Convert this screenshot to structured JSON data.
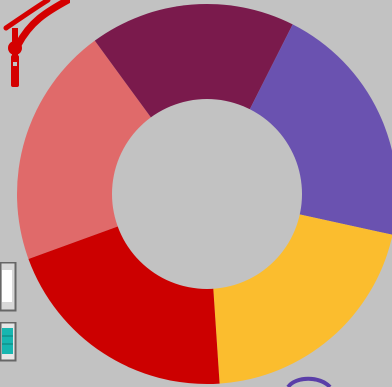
{
  "wallpaper": {
    "background_color": "#c2c2c2"
  },
  "ring_chart": {
    "inner_hole_color": "#c2c2c2",
    "segments": [
      {
        "id": "salmon",
        "color": "#e06a6a",
        "share": 0.205
      },
      {
        "id": "plum",
        "color": "#7a1a4c",
        "share": 0.175
      },
      {
        "id": "purple",
        "color": "#6a52b0",
        "share": 0.21
      },
      {
        "id": "yellow",
        "color": "#fbbd2e",
        "share": 0.205
      },
      {
        "id": "red",
        "color": "#cc0000",
        "share": 0.205
      }
    ]
  },
  "decor": {
    "logo_color": "#d40000",
    "thumbnail_frame_color": "#666666",
    "thumbnail_screen_color": "#17b6b0",
    "arc_color": "#5a3ea8"
  }
}
